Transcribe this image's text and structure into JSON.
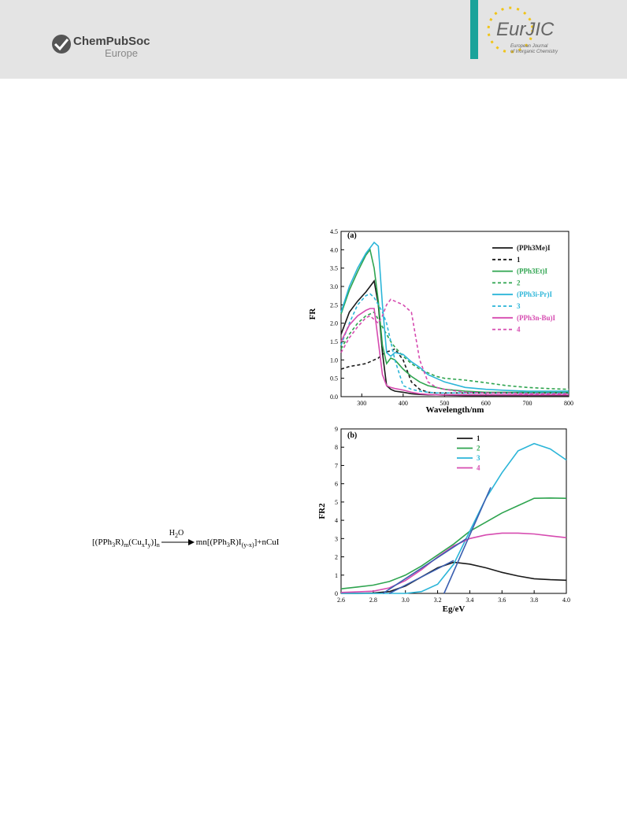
{
  "header": {
    "publisher": "ChemPubSoc",
    "publisher_sub": "Europe",
    "journal_logo": "EurJIC",
    "journal_line1": "European Journal",
    "journal_line2": "of Inorganic Chemistry"
  },
  "equation": {
    "left": [
      {
        "text": "[(PPh"
      },
      {
        "text": "3",
        "sub": true
      },
      {
        "text": "R)"
      },
      {
        "text": "m",
        "sub": true
      },
      {
        "text": "(Cu"
      },
      {
        "text": "x",
        "sub": true
      },
      {
        "text": "I"
      },
      {
        "text": "y",
        "sub": true
      },
      {
        "text": ")]"
      },
      {
        "text": "n",
        "sub": true
      }
    ],
    "above_arrow": [
      {
        "text": "H"
      },
      {
        "text": "2",
        "sub": true
      },
      {
        "text": "O"
      }
    ],
    "right": [
      {
        "text": "mn[(PPh"
      },
      {
        "text": "3",
        "sub": true
      },
      {
        "text": "R)I"
      },
      {
        "text": "(y-x)",
        "sub": true
      },
      {
        "text": "]+nCuI"
      }
    ]
  },
  "chart_data": [
    {
      "type": "line",
      "title": "(a)",
      "y_label": "FR",
      "x_label": "Wavelength/nm",
      "x": [
        250,
        270,
        290,
        310,
        320,
        330,
        340,
        350,
        360,
        370,
        380,
        400,
        420,
        440,
        460,
        480,
        500,
        550,
        600,
        650,
        700,
        750,
        800
      ],
      "xlim": [
        250,
        800
      ],
      "xticks": [
        300,
        400,
        500,
        600,
        700,
        800
      ],
      "ylim": [
        0,
        4.5
      ],
      "yticks": [
        {
          "value": 0,
          "label": "0.0"
        },
        {
          "value": 0.5,
          "label": "0.5"
        },
        {
          "value": 1,
          "label": "1.0"
        },
        {
          "value": 1.5,
          "label": "1.5"
        },
        {
          "value": 2,
          "label": "2.0"
        },
        {
          "value": 2.5,
          "label": "2.5"
        },
        {
          "value": 3,
          "label": "3.0"
        },
        {
          "value": 3.5,
          "label": "3.5"
        },
        {
          "value": 4,
          "label": "4.0"
        },
        {
          "value": 4.5,
          "label": "4.5"
        }
      ],
      "series": [
        {
          "name": "(PPh3Me)I",
          "color": "#1a1a1a",
          "dash": false,
          "values": [
            1.7,
            2.3,
            2.6,
            2.85,
            3.0,
            3.15,
            2.5,
            1.2,
            0.3,
            0.2,
            0.15,
            0.12,
            0.08,
            0.06,
            0.05,
            0.05,
            0.04,
            0.03,
            0.03,
            0.03,
            0.03,
            0.03,
            0.03
          ]
        },
        {
          "name": "1",
          "color": "#1a1a1a",
          "dash": true,
          "values": [
            0.75,
            0.82,
            0.86,
            0.9,
            0.95,
            1.0,
            1.05,
            1.15,
            1.22,
            1.25,
            1.3,
            1.0,
            0.4,
            0.2,
            0.12,
            0.1,
            0.1,
            0.1,
            0.1,
            0.1,
            0.1,
            0.1,
            0.1
          ]
        },
        {
          "name": "(PPh3Et)I",
          "color": "#2ea44f",
          "dash": false,
          "values": [
            2.25,
            2.9,
            3.4,
            3.85,
            4.0,
            3.5,
            2.6,
            1.4,
            0.9,
            1.05,
            1.0,
            0.75,
            0.55,
            0.4,
            0.3,
            0.25,
            0.2,
            0.15,
            0.12,
            0.12,
            0.12,
            0.12,
            0.12
          ]
        },
        {
          "name": "2",
          "color": "#2ea44f",
          "dash": true,
          "values": [
            1.3,
            1.7,
            2.0,
            2.2,
            2.25,
            2.3,
            2.1,
            1.9,
            1.7,
            1.5,
            1.35,
            1.1,
            0.9,
            0.75,
            0.65,
            0.55,
            0.5,
            0.45,
            0.38,
            0.3,
            0.25,
            0.22,
            0.2
          ]
        },
        {
          "name": "(PPh3i-Pr)I",
          "color": "#2bb5d8",
          "dash": false,
          "values": [
            2.3,
            3.0,
            3.5,
            3.9,
            4.05,
            4.2,
            4.1,
            2.5,
            1.2,
            1.1,
            1.2,
            1.15,
            0.95,
            0.8,
            0.6,
            0.5,
            0.4,
            0.25,
            0.2,
            0.17,
            0.15,
            0.15,
            0.15
          ]
        },
        {
          "name": "3",
          "color": "#2bb5d8",
          "dash": true,
          "values": [
            1.4,
            2.0,
            2.5,
            2.75,
            2.8,
            2.7,
            2.5,
            2.3,
            2.0,
            1.5,
            1.0,
            0.3,
            0.2,
            0.15,
            0.12,
            0.1,
            0.1,
            0.1,
            0.1,
            0.1,
            0.1,
            0.1,
            0.1
          ]
        },
        {
          "name": "(PPh3n-Bu)I",
          "color": "#d64bb0",
          "dash": false,
          "values": [
            1.5,
            1.95,
            2.2,
            2.35,
            2.4,
            2.4,
            1.5,
            0.6,
            0.3,
            0.25,
            0.22,
            0.18,
            0.12,
            0.08,
            0.06,
            0.05,
            0.05,
            0.05,
            0.05,
            0.05,
            0.05,
            0.05,
            0.05
          ]
        },
        {
          "name": "4",
          "color": "#d64bb0",
          "dash": true,
          "values": [
            1.2,
            1.6,
            1.9,
            2.15,
            2.2,
            2.1,
            2.0,
            2.2,
            2.5,
            2.65,
            2.6,
            2.5,
            2.3,
            1.0,
            0.4,
            0.25,
            0.2,
            0.12,
            0.1,
            0.1,
            0.08,
            0.08,
            0.08
          ]
        }
      ]
    },
    {
      "type": "line",
      "title": "(b)",
      "y_label": "FR2",
      "x_label": "Eg/eV",
      "x": [
        2.6,
        2.7,
        2.8,
        2.9,
        3.0,
        3.1,
        3.2,
        3.3,
        3.4,
        3.5,
        3.6,
        3.7,
        3.8,
        3.9,
        4.0
      ],
      "xlim": [
        2.6,
        4.0
      ],
      "xticks": [
        2.6,
        2.8,
        {
          "value": 3,
          "label": "3.0"
        },
        3.2,
        3.4,
        3.6,
        3.8,
        {
          "value": 4,
          "label": "4.0"
        }
      ],
      "ylim": [
        0,
        9
      ],
      "yticks": [
        0,
        1,
        2,
        3,
        4,
        5,
        6,
        7,
        8,
        9
      ],
      "series": [
        {
          "name": "1",
          "color": "#1a1a1a",
          "dash": false,
          "values": [
            0,
            0,
            0.02,
            0.1,
            0.4,
            0.9,
            1.4,
            1.7,
            1.6,
            1.4,
            1.15,
            0.95,
            0.8,
            0.75,
            0.72
          ]
        },
        {
          "name": "2",
          "color": "#2ea44f",
          "dash": false,
          "values": [
            0.25,
            0.35,
            0.45,
            0.65,
            1.0,
            1.5,
            2.1,
            2.7,
            3.4,
            3.9,
            4.4,
            4.8,
            5.2,
            5.22,
            5.2
          ]
        },
        {
          "name": "3",
          "color": "#2bb5d8",
          "dash": false,
          "values": [
            0,
            0,
            0,
            0,
            0,
            0.1,
            0.5,
            1.6,
            3.4,
            5.2,
            6.6,
            7.8,
            8.2,
            7.9,
            7.3
          ]
        },
        {
          "name": "4",
          "color": "#d64bb0",
          "dash": false,
          "values": [
            0.05,
            0.08,
            0.12,
            0.3,
            0.7,
            1.3,
            2.0,
            2.6,
            3.0,
            3.2,
            3.3,
            3.3,
            3.25,
            3.15,
            3.05
          ]
        }
      ],
      "fit_lines": {
        "color": "#3a5fb0",
        "lines": [
          {
            "x": [
              2.86,
              3.38
            ],
            "y": [
              0,
              3.0
            ]
          },
          {
            "x": [
              2.9,
              3.3
            ],
            "y": [
              0,
              1.8
            ]
          },
          {
            "x": [
              3.24,
              3.53
            ],
            "y": [
              0,
              5.8
            ]
          }
        ]
      }
    }
  ]
}
